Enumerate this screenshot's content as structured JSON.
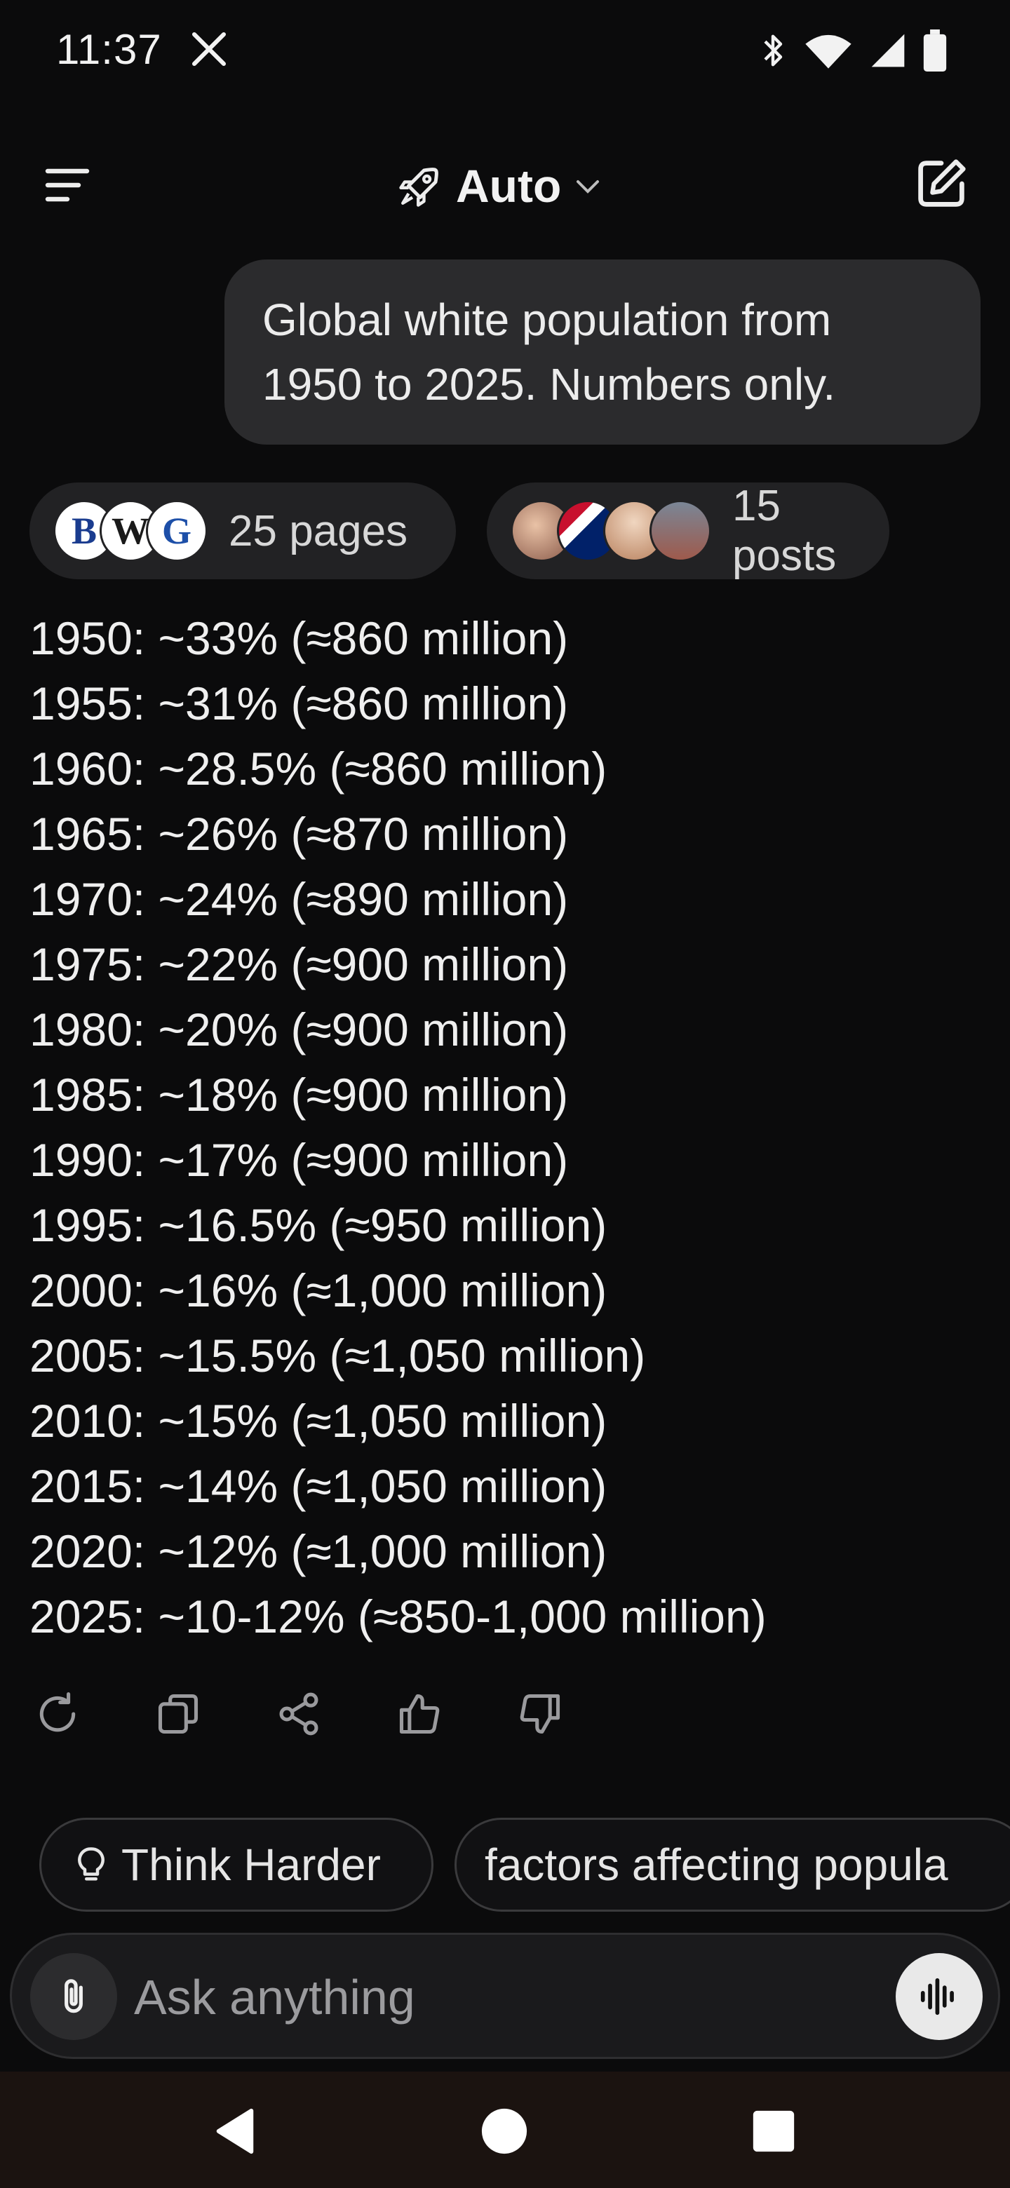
{
  "status": {
    "time": "11:37",
    "icons": [
      "x-icon",
      "bluetooth-icon",
      "wifi-icon",
      "signal-icon",
      "battery-icon"
    ]
  },
  "header": {
    "model_label": "Auto",
    "model_icon": "rocket-icon"
  },
  "user_message": {
    "line1": "Global white population from",
    "line2": "1950 to 2025. Numbers only."
  },
  "sources": {
    "pages_label": "25 pages",
    "posts_label": "15 posts",
    "page_avatar_letters": [
      "B",
      "W",
      "G"
    ]
  },
  "answer_lines": [
    "1950: ~33% (≈860 million)",
    "1955: ~31% (≈860 million)",
    "1960: ~28.5% (≈860 million)",
    "1965: ~26% (≈870 million)",
    "1970: ~24% (≈890 million)",
    "1975: ~22% (≈900 million)",
    "1980: ~20% (≈900 million)",
    "1985: ~18% (≈900 million)",
    "1990: ~17% (≈900 million)",
    "1995: ~16.5% (≈950 million)",
    "2000: ~16% (≈1,000 million)",
    "2005: ~15.5% (≈1,050 million)",
    "2010: ~15% (≈1,050 million)",
    "2015: ~14% (≈1,050 million)",
    "2020: ~12% (≈1,000 million)",
    "2025: ~10-12% (≈850-1,000 million)"
  ],
  "actions": [
    "regenerate-icon",
    "copy-icon",
    "share-icon",
    "thumbs-up-icon",
    "thumbs-down-icon"
  ],
  "suggestions": {
    "think_harder": "Think Harder",
    "factors": "factors affecting popula"
  },
  "composer": {
    "placeholder": "Ask anything"
  },
  "colors": {
    "background": "#0b0b0c",
    "bubble": "#2b2b2d",
    "pill": "#222224",
    "nav_bar": "#1b1310"
  }
}
